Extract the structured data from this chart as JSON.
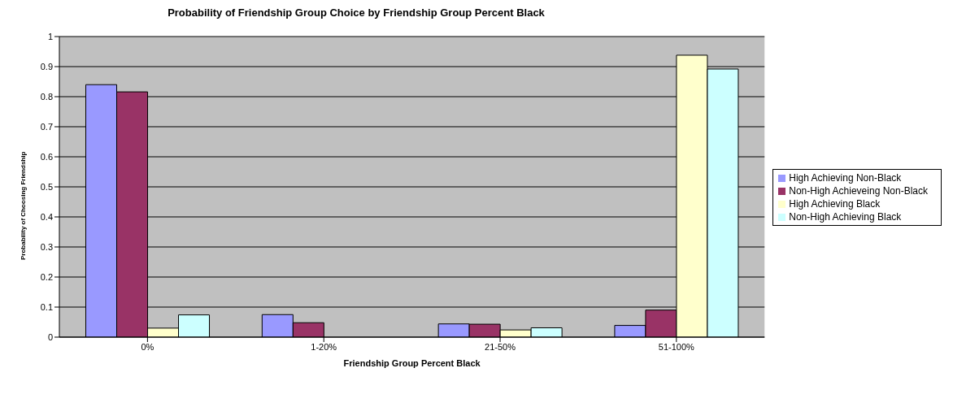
{
  "chart_data": {
    "type": "bar",
    "title": "Probability of Friendship Group Choice by Friendship Group Percent Black",
    "xlabel": "Friendship Group Percent Black",
    "ylabel": "Probability of Choosing Friendship",
    "categories": [
      "0%",
      "1-20%",
      "21-50%",
      "51-100%"
    ],
    "series": [
      {
        "name": "High Achieving Non-Black",
        "color": "#9999ff",
        "values": [
          0.84,
          0.075,
          0.044,
          0.039
        ]
      },
      {
        "name": "Non-High Achieveing Non-Black",
        "color": "#993366",
        "values": [
          0.816,
          0.048,
          0.043,
          0.09
        ]
      },
      {
        "name": "High Achieving Black",
        "color": "#ffffcc",
        "values": [
          0.03,
          null,
          0.024,
          0.938
        ]
      },
      {
        "name": "Non-High Achieving Black",
        "color": "#ccffff",
        "values": [
          0.074,
          null,
          0.031,
          0.892
        ]
      }
    ],
    "ylim": [
      0,
      1
    ],
    "yticks": [
      0,
      0.1,
      0.2,
      0.3,
      0.4,
      0.5,
      0.6,
      0.7,
      0.8,
      0.9,
      1
    ],
    "grid": "y",
    "legend": "right"
  }
}
